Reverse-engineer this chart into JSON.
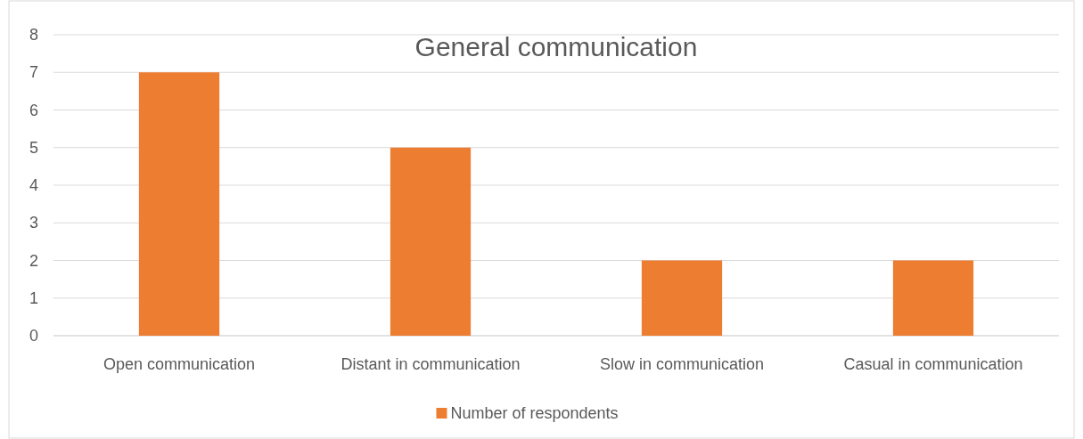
{
  "chart_data": {
    "type": "bar",
    "title": "General communication",
    "categories": [
      "Open communication",
      "Distant in communication",
      "Slow in communication",
      "Casual in communication"
    ],
    "series": [
      {
        "name": "Number of respondents",
        "color": "#ed7d31",
        "values": [
          7,
          5,
          2,
          2
        ]
      }
    ],
    "ylim": [
      0,
      8
    ],
    "yticks": [
      0,
      1,
      2,
      3,
      4,
      5,
      6,
      7,
      8
    ],
    "grid": "y",
    "legend": "bottom"
  }
}
